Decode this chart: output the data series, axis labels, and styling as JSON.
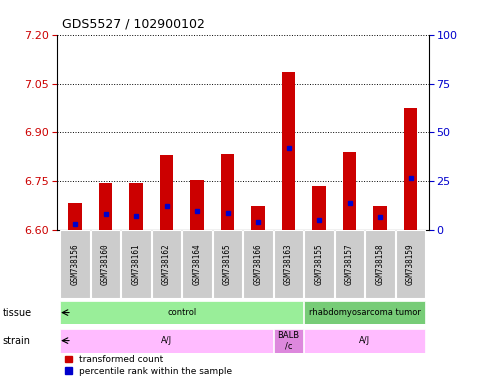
{
  "title": "GDS5527 / 102900102",
  "samples": [
    "GSM738156",
    "GSM738160",
    "GSM738161",
    "GSM738162",
    "GSM738164",
    "GSM738165",
    "GSM738166",
    "GSM738163",
    "GSM738155",
    "GSM738157",
    "GSM738158",
    "GSM738159"
  ],
  "red_values": [
    6.685,
    6.745,
    6.745,
    6.83,
    6.755,
    6.835,
    6.675,
    7.085,
    6.735,
    6.84,
    6.675,
    6.975
  ],
  "blue_values": [
    3.5,
    8.5,
    7.5,
    12.5,
    10.0,
    9.0,
    4.5,
    42.0,
    5.5,
    14.0,
    7.0,
    27.0
  ],
  "ymin": 6.6,
  "ymax": 7.2,
  "yticks": [
    6.6,
    6.75,
    6.9,
    7.05,
    7.2
  ],
  "y2min": 0,
  "y2max": 100,
  "y2ticks": [
    0,
    25,
    50,
    75,
    100
  ],
  "bar_color": "#cc0000",
  "dot_color": "#0000cc",
  "legend_red": "transformed count",
  "legend_blue": "percentile rank within the sample",
  "left_tick_color": "#cc0000",
  "right_tick_color": "#0000cc",
  "bar_width": 0.45,
  "tissue_ranges": [
    [
      0,
      7,
      "control",
      "#99ee99"
    ],
    [
      8,
      11,
      "rhabdomyosarcoma tumor",
      "#77cc77"
    ]
  ],
  "strain_ranges": [
    [
      0,
      6,
      "A/J",
      "#ffbbff"
    ],
    [
      7,
      7,
      "BALB\n/c",
      "#dd88dd"
    ],
    [
      8,
      11,
      "A/J",
      "#ffbbff"
    ]
  ]
}
